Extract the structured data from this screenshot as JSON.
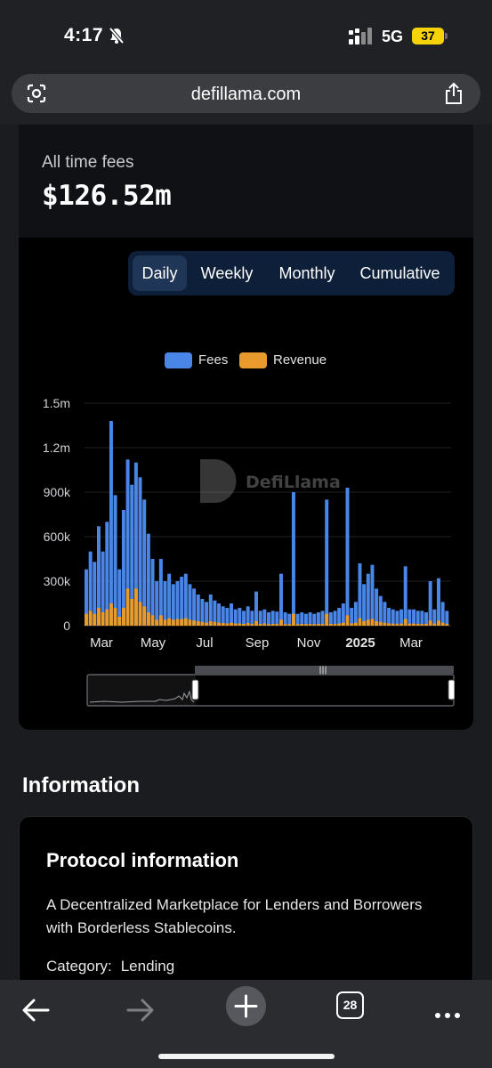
{
  "status_bar": {
    "time": "4:17",
    "network": "5G",
    "battery": "37"
  },
  "browser": {
    "url": "defillama.com",
    "tab_count": "28"
  },
  "fees": {
    "label": "All time fees",
    "value": "$126.52m"
  },
  "period_tabs": [
    {
      "label": "Daily",
      "active": true
    },
    {
      "label": "Weekly",
      "active": false
    },
    {
      "label": "Monthly",
      "active": false
    },
    {
      "label": "Cumulative",
      "active": false
    }
  ],
  "watermark": "DefiLlama",
  "colors": {
    "fees": "#4a86e8",
    "revenue": "#e89b2c",
    "background": "#000000",
    "tab_bar": "#0e1f3a"
  },
  "chart_data": {
    "type": "bar",
    "stacked": false,
    "x_ticks": [
      "Mar",
      "May",
      "Jul",
      "Sep",
      "Nov",
      "2025",
      "Mar"
    ],
    "y_ticks": [
      "0",
      "300k",
      "600k",
      "900k",
      "1.2m",
      "1.5m"
    ],
    "ylim": [
      0,
      1500000
    ],
    "legend": "top-center",
    "grid": true,
    "series": [
      {
        "name": "Fees",
        "color": "#4a86e8",
        "approx_values": [
          380000,
          500000,
          430000,
          670000,
          500000,
          700000,
          1380000,
          880000,
          380000,
          780000,
          1120000,
          950000,
          1100000,
          1000000,
          850000,
          620000,
          450000,
          300000,
          450000,
          300000,
          350000,
          280000,
          300000,
          330000,
          350000,
          280000,
          250000,
          210000,
          180000,
          160000,
          210000,
          170000,
          150000,
          130000,
          120000,
          150000,
          110000,
          120000,
          100000,
          130000,
          100000,
          230000,
          100000,
          110000,
          90000,
          100000,
          95000,
          350000,
          90000,
          80000,
          900000,
          80000,
          90000,
          80000,
          90000,
          80000,
          90000,
          100000,
          850000,
          90000,
          100000,
          120000,
          150000,
          930000,
          120000,
          160000,
          420000,
          280000,
          350000,
          410000,
          250000,
          200000,
          160000,
          120000,
          110000,
          100000,
          110000,
          400000,
          110000,
          110000,
          100000,
          100000,
          90000,
          300000,
          110000,
          320000,
          160000,
          100000
        ]
      },
      {
        "name": "Revenue",
        "color": "#e89b2c",
        "approx_values": [
          80000,
          100000,
          80000,
          120000,
          90000,
          110000,
          150000,
          120000,
          60000,
          120000,
          250000,
          180000,
          250000,
          160000,
          130000,
          90000,
          70000,
          40000,
          70000,
          40000,
          50000,
          40000,
          45000,
          45000,
          50000,
          40000,
          35000,
          30000,
          25000,
          20000,
          30000,
          25000,
          20000,
          18000,
          15000,
          20000,
          15000,
          15000,
          12000,
          18000,
          12000,
          30000,
          12000,
          15000,
          10000,
          12000,
          12000,
          40000,
          10000,
          10000,
          80000,
          10000,
          12000,
          10000,
          12000,
          10000,
          12000,
          12000,
          80000,
          12000,
          12000,
          15000,
          20000,
          70000,
          15000,
          20000,
          50000,
          30000,
          40000,
          45000,
          30000,
          25000,
          20000,
          15000,
          14000,
          12000,
          14000,
          45000,
          14000,
          14000,
          12000,
          12000,
          12000,
          35000,
          14000,
          35000,
          20000,
          12000
        ]
      }
    ]
  },
  "information": {
    "heading": "Information",
    "card_title": "Protocol information",
    "description": "A Decentralized Marketplace for Lenders and Borrowers with Borderless Stablecoins.",
    "category_label": "Category:",
    "category_value": "Lending"
  },
  "icons": [
    "bell-slash-icon",
    "signal-bars-icon",
    "lens-icon",
    "share-icon",
    "back-arrow-icon",
    "forward-arrow-icon",
    "plus-icon",
    "more-icon"
  ]
}
